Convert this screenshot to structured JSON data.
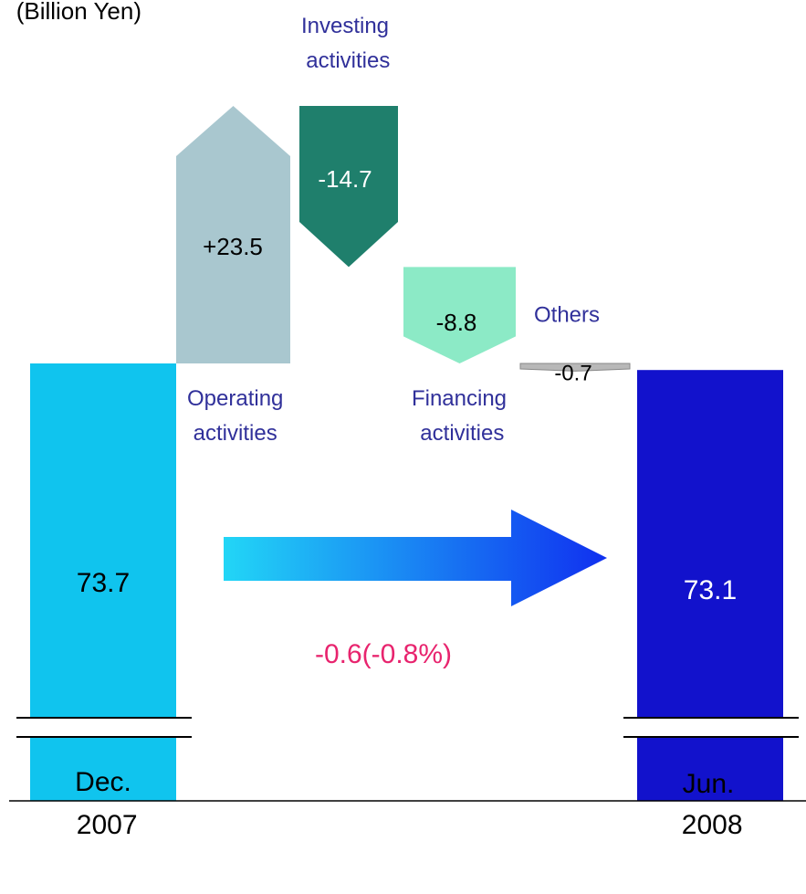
{
  "chart_data": {
    "type": "waterfall",
    "y_label": "(Billion Yen)",
    "categories": [
      "Dec. 2007",
      "Operating activities",
      "Investing activities",
      "Financing activities",
      "Others",
      "Jun. 2008"
    ],
    "values": [
      73.7,
      23.5,
      -14.7,
      -8.8,
      -0.7,
      73.1
    ],
    "value_labels": [
      "73.7",
      "+23.5",
      "-14.7",
      "-8.8",
      "-0.7",
      "73.1"
    ],
    "measure": [
      "absolute",
      "relative",
      "relative",
      "relative",
      "relative",
      "absolute"
    ],
    "colors": [
      "#10c4ee",
      "#a9c7cf",
      "#1f7f6c",
      "#8ceac6",
      "#b8b8b8",
      "#1212cc"
    ],
    "annotation": "-0.6(-0.8%)"
  }
}
